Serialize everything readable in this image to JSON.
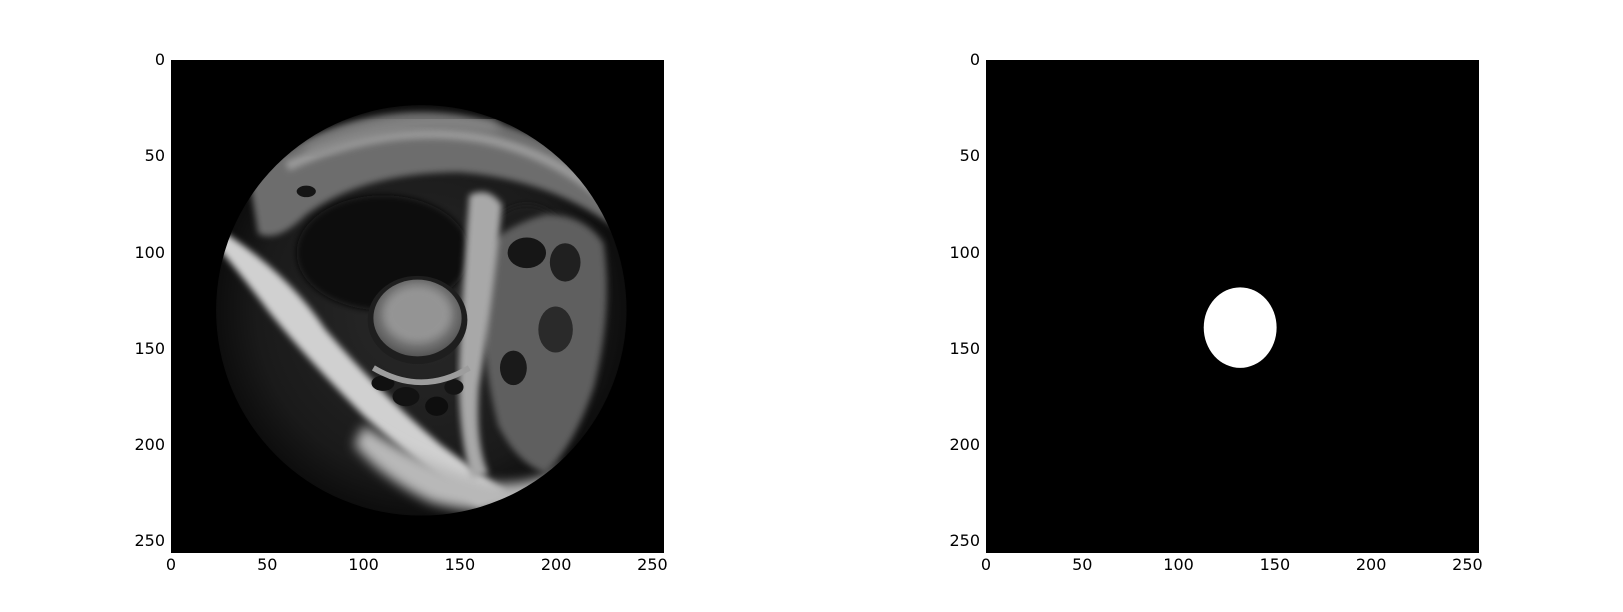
{
  "figure": {
    "panels": [
      {
        "id": "mri-image",
        "content": "grayscale cardiac MRI slice in circular field of view",
        "x_ticks": [
          "0",
          "50",
          "100",
          "150",
          "200",
          "250"
        ],
        "y_ticks": [
          "0",
          "50",
          "100",
          "150",
          "200",
          "250"
        ],
        "x_range": [
          0,
          256
        ],
        "y_range": [
          0,
          256
        ]
      },
      {
        "id": "segmentation-mask",
        "content": "binary mask with single white blob",
        "mask_center": [
          132,
          139
        ],
        "mask_radius": [
          19,
          21
        ],
        "x_ticks": [
          "0",
          "50",
          "100",
          "150",
          "200",
          "250"
        ],
        "y_ticks": [
          "0",
          "50",
          "100",
          "150",
          "200",
          "250"
        ],
        "x_range": [
          0,
          256
        ],
        "y_range": [
          0,
          256
        ]
      }
    ],
    "colors": {
      "background": "#ffffff",
      "image_bg": "#000000",
      "mask": "#ffffff"
    }
  }
}
